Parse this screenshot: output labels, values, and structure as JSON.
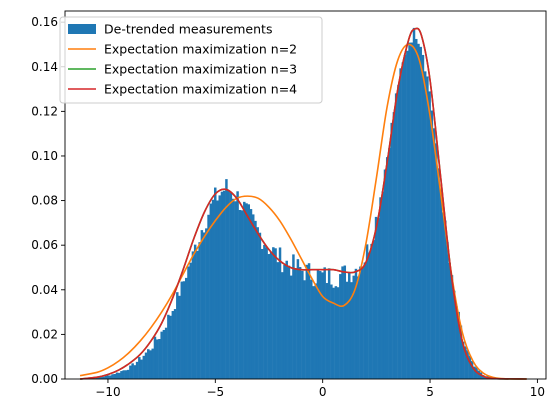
{
  "chart_data": {
    "type": "histogram",
    "title": "",
    "xlabel": "",
    "ylabel": "",
    "xlim": [
      -12.0,
      10.4
    ],
    "ylim": [
      0,
      0.165
    ],
    "xticks": [
      -10,
      -5,
      0,
      5,
      10
    ],
    "yticks": [
      0.0,
      0.02,
      0.04,
      0.06,
      0.08,
      0.1,
      0.12,
      0.14,
      0.16
    ],
    "xtick_labels": [
      "−10",
      "−5",
      "0",
      "5",
      "10"
    ],
    "ytick_labels": [
      "0.00",
      "0.02",
      "0.04",
      "0.06",
      "0.08",
      "0.10",
      "0.12",
      "0.14",
      "0.16"
    ],
    "grid": false,
    "legend_position": "top-left",
    "histogram": {
      "name": "De-trended measurements",
      "color": "#1f77b4",
      "x_range": [
        -11.3,
        9.5
      ],
      "envelope": [
        [
          -11.3,
          0.0
        ],
        [
          -10.5,
          0.0005
        ],
        [
          -10.0,
          0.0015
        ],
        [
          -9.5,
          0.003
        ],
        [
          -9.0,
          0.005
        ],
        [
          -8.5,
          0.009
        ],
        [
          -8.0,
          0.014
        ],
        [
          -7.5,
          0.021
        ],
        [
          -7.0,
          0.031
        ],
        [
          -6.5,
          0.043
        ],
        [
          -6.0,
          0.057
        ],
        [
          -5.5,
          0.071
        ],
        [
          -5.0,
          0.081
        ],
        [
          -4.5,
          0.086
        ],
        [
          -4.0,
          0.082
        ],
        [
          -3.5,
          0.074
        ],
        [
          -3.0,
          0.066
        ],
        [
          -2.5,
          0.059
        ],
        [
          -2.0,
          0.054
        ],
        [
          -1.5,
          0.051
        ],
        [
          -1.0,
          0.049
        ],
        [
          -0.5,
          0.047
        ],
        [
          0.0,
          0.046
        ],
        [
          0.5,
          0.046
        ],
        [
          1.0,
          0.047
        ],
        [
          1.5,
          0.049
        ],
        [
          2.0,
          0.055
        ],
        [
          2.5,
          0.072
        ],
        [
          3.0,
          0.1
        ],
        [
          3.5,
          0.132
        ],
        [
          4.0,
          0.151
        ],
        [
          4.3,
          0.156
        ],
        [
          4.6,
          0.15
        ],
        [
          5.0,
          0.128
        ],
        [
          5.5,
          0.085
        ],
        [
          6.0,
          0.045
        ],
        [
          6.5,
          0.018
        ],
        [
          7.0,
          0.006
        ],
        [
          7.5,
          0.0015
        ],
        [
          8.0,
          0.0005
        ],
        [
          9.5,
          0.0
        ]
      ]
    },
    "series": [
      {
        "name": "Expectation maximization n=2",
        "color": "#ff7f0e",
        "x": [
          -11.3,
          -10.5,
          -10.0,
          -9.5,
          -9.0,
          -8.5,
          -8.0,
          -7.5,
          -7.0,
          -6.5,
          -6.0,
          -5.5,
          -5.0,
          -4.5,
          -4.0,
          -3.5,
          -3.0,
          -2.5,
          -2.0,
          -1.5,
          -1.0,
          -0.5,
          0.0,
          0.5,
          1.0,
          1.5,
          2.0,
          2.5,
          3.0,
          3.5,
          4.0,
          4.5,
          5.0,
          5.5,
          6.0,
          6.5,
          7.0,
          7.5,
          8.0,
          8.5,
          9.5
        ],
        "y": [
          0.0015,
          0.003,
          0.005,
          0.008,
          0.012,
          0.017,
          0.023,
          0.03,
          0.038,
          0.047,
          0.056,
          0.064,
          0.071,
          0.077,
          0.081,
          0.082,
          0.081,
          0.077,
          0.071,
          0.063,
          0.054,
          0.045,
          0.037,
          0.034,
          0.033,
          0.04,
          0.06,
          0.09,
          0.122,
          0.143,
          0.15,
          0.143,
          0.118,
          0.083,
          0.047,
          0.021,
          0.008,
          0.0025,
          0.0006,
          0.0001,
          0.0
        ]
      },
      {
        "name": "Expectation maximization n=3",
        "color": "#2ca02c",
        "x": [
          -11.3,
          -10.5,
          -10.0,
          -9.5,
          -9.0,
          -8.5,
          -8.0,
          -7.5,
          -7.0,
          -6.5,
          -6.0,
          -5.5,
          -5.0,
          -4.5,
          -4.0,
          -3.5,
          -3.0,
          -2.5,
          -2.0,
          -1.5,
          -1.0,
          -0.5,
          0.0,
          0.5,
          1.0,
          1.5,
          2.0,
          2.5,
          3.0,
          3.5,
          4.0,
          4.3,
          4.6,
          5.0,
          5.5,
          6.0,
          6.5,
          7.0,
          7.5,
          8.0,
          9.5
        ],
        "y": [
          0.0,
          0.0008,
          0.002,
          0.004,
          0.007,
          0.011,
          0.017,
          0.025,
          0.036,
          0.049,
          0.063,
          0.075,
          0.083,
          0.085,
          0.081,
          0.073,
          0.065,
          0.058,
          0.053,
          0.05,
          0.049,
          0.049,
          0.049,
          0.049,
          0.048,
          0.048,
          0.052,
          0.068,
          0.097,
          0.13,
          0.152,
          0.157,
          0.154,
          0.134,
          0.09,
          0.046,
          0.017,
          0.005,
          0.0012,
          0.0002,
          0.0
        ]
      },
      {
        "name": "Expectation maximization n=4",
        "color": "#d62728",
        "x": [
          -11.3,
          -10.5,
          -10.0,
          -9.5,
          -9.0,
          -8.5,
          -8.0,
          -7.5,
          -7.0,
          -6.5,
          -6.0,
          -5.5,
          -5.0,
          -4.5,
          -4.0,
          -3.5,
          -3.0,
          -2.5,
          -2.0,
          -1.5,
          -1.0,
          -0.5,
          0.0,
          0.5,
          1.0,
          1.5,
          2.0,
          2.5,
          3.0,
          3.5,
          4.0,
          4.3,
          4.6,
          5.0,
          5.5,
          6.0,
          6.5,
          7.0,
          7.5,
          8.0,
          9.5
        ],
        "y": [
          0.0,
          0.0008,
          0.002,
          0.004,
          0.007,
          0.011,
          0.017,
          0.025,
          0.036,
          0.049,
          0.063,
          0.075,
          0.083,
          0.085,
          0.081,
          0.073,
          0.065,
          0.058,
          0.053,
          0.05,
          0.049,
          0.049,
          0.049,
          0.049,
          0.048,
          0.048,
          0.052,
          0.068,
          0.097,
          0.13,
          0.152,
          0.157,
          0.154,
          0.134,
          0.09,
          0.046,
          0.017,
          0.005,
          0.0012,
          0.0002,
          0.0
        ]
      }
    ]
  }
}
